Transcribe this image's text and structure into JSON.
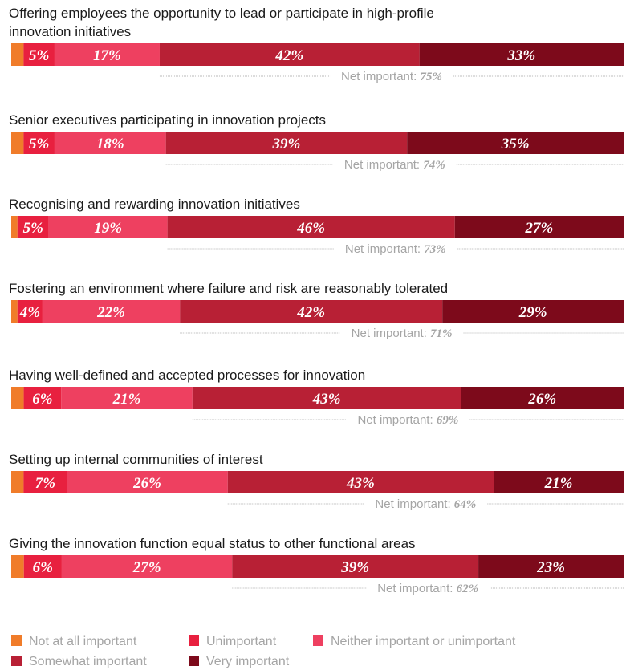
{
  "colors": {
    "not_at_all": "#f07c2a",
    "unimportant": "#e8203f",
    "neither": "#ee4060",
    "somewhat": "#b82035",
    "very": "#7d0a1b",
    "title_text": "#1a1a1a",
    "net_text": "#a5a5a5",
    "net_line": "#b8b8b8"
  },
  "chart_data": {
    "type": "bar",
    "orientation": "horizontal",
    "stacked": true,
    "title": "",
    "xlabel": "",
    "ylabel": "",
    "legend_position": "bottom",
    "grid": false,
    "categories": [
      "Offering employees the opportunity to lead or participate in high-profile innovation initiatives",
      "Senior executives participating in innovation projects",
      "Recognising and rewarding innovation initiatives",
      "Fostering an environment where failure and risk are reasonably tolerated",
      "Having well-defined and accepted processes for innovation",
      "Setting up internal communities of interest",
      "Giving the innovation function equal status to other functional areas"
    ],
    "series": [
      {
        "name": "Not at all important",
        "color": "#f07c2a",
        "values": [
          2,
          2,
          1,
          1,
          2,
          2,
          2
        ]
      },
      {
        "name": "Unimportant",
        "color": "#e8203f",
        "values": [
          5,
          5,
          5,
          4,
          6,
          7,
          6
        ]
      },
      {
        "name": "Neither important or unimportant",
        "color": "#ee4060",
        "values": [
          17,
          18,
          19,
          22,
          21,
          26,
          27
        ]
      },
      {
        "name": "Somewhat important",
        "color": "#b82035",
        "values": [
          42,
          39,
          46,
          42,
          43,
          43,
          39
        ]
      },
      {
        "name": "Very important",
        "color": "#7d0a1b",
        "values": [
          33,
          35,
          27,
          29,
          26,
          21,
          23
        ]
      }
    ],
    "data_labels": [
      [
        "",
        "5%",
        "17%",
        "42%",
        "33%"
      ],
      [
        "",
        "5%",
        "18%",
        "39%",
        "35%"
      ],
      [
        "",
        "5%",
        "19%",
        "46%",
        "27%"
      ],
      [
        "",
        "4%",
        "22%",
        "42%",
        "29%"
      ],
      [
        "",
        "6%",
        "21%",
        "43%",
        "26%"
      ],
      [
        "",
        "7%",
        "26%",
        "43%",
        "21%"
      ],
      [
        "",
        "6%",
        "27%",
        "39%",
        "23%"
      ]
    ],
    "net_important_label": "Net important:",
    "net_important_values": [
      "75%",
      "74%",
      "73%",
      "71%",
      "69%",
      "64%",
      "62%"
    ]
  },
  "titles": [
    [
      "Offering employees the opportunity to lead or participate in high-profile",
      "innovation initiatives"
    ],
    [
      "Senior executives participating in innovation projects"
    ],
    [
      "Recognising and rewarding innovation initiatives"
    ],
    [
      "Fostering an environment where failure and risk are reasonably tolerated"
    ],
    [
      "Having well-defined and accepted processes for innovation"
    ],
    [
      "Setting up internal communities of interest"
    ],
    [
      "Giving the innovation function equal status to other functional areas"
    ]
  ],
  "legend": [
    {
      "label": "Not at all important",
      "color": "#f07c2a"
    },
    {
      "label": "Unimportant",
      "color": "#e8203f"
    },
    {
      "label": "Neither important or unimportant",
      "color": "#ee4060"
    },
    {
      "label": "Somewhat important",
      "color": "#b82035"
    },
    {
      "label": "Very important",
      "color": "#7d0a1b"
    }
  ]
}
